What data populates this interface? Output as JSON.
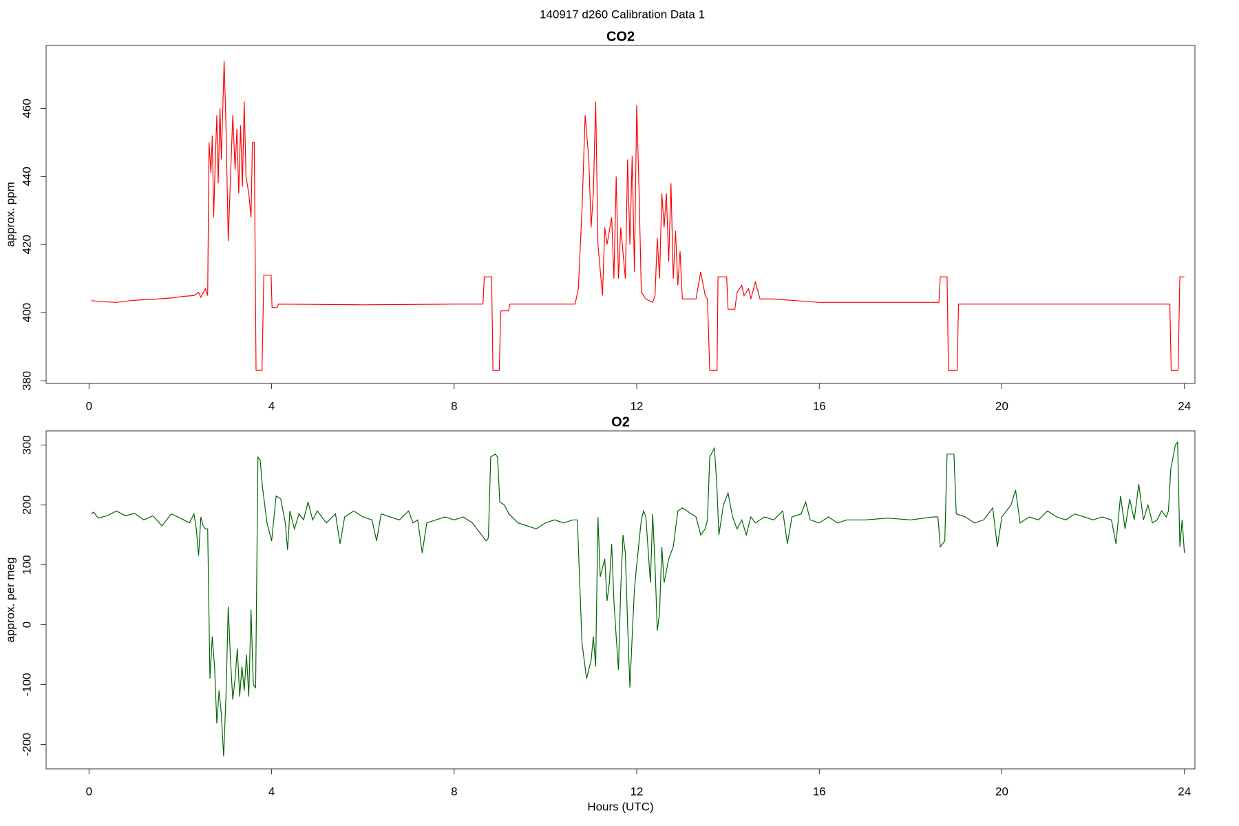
{
  "title": "140917   d260   Calibration Data 1",
  "chart_data": [
    {
      "type": "line",
      "title": "CO2",
      "ylabel": "approx. ppm",
      "color": "#ff0000",
      "xlim": [
        -0.94,
        24.23
      ],
      "ylim": [
        379.2,
        478.5
      ],
      "xticks": [
        0,
        4,
        8,
        12,
        16,
        20,
        24
      ],
      "yticks": [
        380,
        400,
        420,
        440,
        460
      ],
      "x": [
        0.05,
        0.3,
        0.6,
        0.9,
        1.2,
        1.5,
        1.8,
        2.1,
        2.3,
        2.4,
        2.45,
        2.55,
        2.6,
        2.63,
        2.67,
        2.7,
        2.73,
        2.77,
        2.8,
        2.83,
        2.87,
        2.9,
        2.96,
        3.0,
        3.05,
        3.1,
        3.15,
        3.2,
        3.24,
        3.28,
        3.32,
        3.36,
        3.4,
        3.44,
        3.5,
        3.55,
        3.58,
        3.62,
        3.66,
        3.79,
        3.83,
        3.99,
        4.01,
        4.12,
        4.15,
        6,
        8,
        8.63,
        8.66,
        8.82,
        8.85,
        8.99,
        9.02,
        9.19,
        9.22,
        10,
        10.65,
        10.72,
        10.8,
        10.87,
        10.95,
        11.0,
        11.05,
        11.1,
        11.15,
        11.25,
        11.3,
        11.35,
        11.45,
        11.5,
        11.55,
        11.6,
        11.65,
        11.75,
        11.8,
        11.85,
        11.9,
        11.95,
        12.0,
        12.05,
        12.1,
        12.2,
        12.35,
        12.4,
        12.45,
        12.5,
        12.55,
        12.6,
        12.65,
        12.7,
        12.75,
        12.8,
        12.85,
        12.9,
        12.95,
        13.0,
        13.3,
        13.4,
        13.5,
        13.55,
        13.6,
        13.76,
        13.78,
        13.97,
        14.0,
        14.15,
        14.2,
        14.3,
        14.35,
        14.45,
        14.5,
        14.6,
        14.7,
        15,
        16,
        18,
        18.62,
        18.65,
        18.8,
        18.83,
        19.02,
        19.05,
        22,
        23.68,
        23.71,
        23.86,
        23.9,
        24
      ],
      "values": [
        403.5,
        403.2,
        403,
        403.5,
        403.8,
        404,
        404.3,
        404.8,
        405,
        406,
        404.5,
        407,
        405,
        450,
        441,
        452,
        428,
        446,
        458,
        438,
        460,
        445,
        474,
        455,
        421,
        440,
        458,
        442,
        454,
        435,
        455,
        437,
        462,
        440,
        435,
        428,
        450,
        450,
        383,
        383,
        411,
        411,
        401.5,
        401.5,
        402.5,
        402.3,
        402.5,
        402.5,
        410.5,
        410.5,
        383,
        383,
        400.5,
        400.5,
        402.5,
        402.5,
        402.5,
        407,
        430,
        458,
        445,
        425,
        435,
        462,
        420,
        405,
        425,
        420,
        428,
        410,
        440,
        410,
        425,
        410,
        445,
        420,
        446,
        412,
        461,
        436,
        406,
        404,
        403,
        405,
        422,
        410,
        435,
        425,
        435,
        415,
        438,
        410,
        424,
        408,
        418,
        404,
        404,
        412,
        405,
        404,
        383,
        383,
        410.5,
        410.5,
        401,
        401,
        406,
        408,
        405,
        407,
        404,
        409,
        404,
        404,
        403,
        403,
        403,
        410.5,
        410.5,
        383,
        383,
        402.5,
        402.5,
        402.5,
        383,
        383,
        410.5,
        410.5
      ]
    },
    {
      "type": "line",
      "title": "O2",
      "ylabel": "approx. per meg",
      "xlabel": "Hours (UTC)",
      "color": "#006400",
      "xlim": [
        -0.94,
        24.23
      ],
      "ylim": [
        -240.8,
        323.7
      ],
      "xticks": [
        0,
        4,
        8,
        12,
        16,
        20,
        24
      ],
      "yticks": [
        -200,
        -100,
        0,
        100,
        200,
        300
      ],
      "x": [
        0.05,
        0.1,
        0.2,
        0.4,
        0.6,
        0.8,
        1.0,
        1.2,
        1.4,
        1.6,
        1.8,
        2.0,
        2.2,
        2.3,
        2.35,
        2.4,
        2.45,
        2.5,
        2.55,
        2.6,
        2.65,
        2.7,
        2.75,
        2.8,
        2.85,
        2.9,
        2.95,
        3.0,
        3.05,
        3.1,
        3.15,
        3.2,
        3.25,
        3.3,
        3.35,
        3.4,
        3.45,
        3.5,
        3.55,
        3.6,
        3.65,
        3.7,
        3.75,
        3.8,
        3.9,
        4.0,
        4.1,
        4.2,
        4.3,
        4.35,
        4.4,
        4.5,
        4.6,
        4.7,
        4.8,
        4.9,
        5.0,
        5.2,
        5.4,
        5.5,
        5.6,
        5.8,
        6.0,
        6.2,
        6.3,
        6.4,
        6.6,
        6.8,
        7.0,
        7.1,
        7.2,
        7.3,
        7.4,
        7.6,
        7.8,
        8.0,
        8.2,
        8.4,
        8.6,
        8.7,
        8.75,
        8.8,
        8.9,
        8.95,
        9.0,
        9.1,
        9.2,
        9.4,
        9.6,
        9.8,
        10.0,
        10.2,
        10.4,
        10.6,
        10.7,
        10.8,
        10.9,
        11.0,
        11.05,
        11.1,
        11.15,
        11.2,
        11.3,
        11.35,
        11.4,
        11.45,
        11.5,
        11.55,
        11.6,
        11.65,
        11.7,
        11.75,
        11.8,
        11.85,
        11.9,
        11.95,
        12.0,
        12.1,
        12.15,
        12.2,
        12.3,
        12.35,
        12.4,
        12.45,
        12.5,
        12.55,
        12.6,
        12.7,
        12.8,
        12.9,
        13.0,
        13.2,
        13.3,
        13.4,
        13.5,
        13.55,
        13.6,
        13.7,
        13.75,
        13.8,
        13.9,
        14.0,
        14.1,
        14.2,
        14.3,
        14.4,
        14.5,
        14.6,
        14.8,
        15.0,
        15.2,
        15.3,
        15.4,
        15.6,
        15.7,
        15.8,
        16.0,
        16.2,
        16.4,
        16.6,
        17,
        17.5,
        18,
        18.5,
        18.6,
        18.65,
        18.75,
        18.8,
        18.95,
        19.0,
        19.2,
        19.4,
        19.6,
        19.8,
        19.9,
        20.0,
        20.2,
        20.3,
        20.4,
        20.6,
        20.8,
        21.0,
        21.2,
        21.4,
        21.6,
        21.8,
        22.0,
        22.2,
        22.4,
        22.5,
        22.6,
        22.7,
        22.8,
        22.9,
        23.0,
        23.1,
        23.2,
        23.3,
        23.4,
        23.5,
        23.6,
        23.65,
        23.7,
        23.8,
        23.85,
        23.9,
        23.95,
        24.0
      ],
      "values": [
        185,
        188,
        178,
        182,
        190,
        182,
        186,
        175,
        182,
        165,
        185,
        178,
        170,
        185,
        160,
        115,
        180,
        165,
        160,
        160,
        -90,
        -20,
        -70,
        -165,
        -110,
        -150,
        -220,
        -120,
        30,
        -60,
        -125,
        -90,
        -40,
        -120,
        -70,
        -110,
        -50,
        -120,
        25,
        -100,
        -105,
        280,
        275,
        230,
        170,
        140,
        215,
        210,
        170,
        125,
        190,
        160,
        185,
        175,
        205,
        175,
        190,
        170,
        185,
        135,
        180,
        190,
        180,
        175,
        140,
        185,
        180,
        175,
        190,
        170,
        175,
        120,
        170,
        175,
        180,
        175,
        180,
        170,
        150,
        140,
        145,
        280,
        285,
        280,
        205,
        200,
        185,
        170,
        165,
        160,
        170,
        175,
        170,
        175,
        175,
        -30,
        -90,
        -60,
        -20,
        -70,
        180,
        80,
        110,
        40,
        70,
        135,
        40,
        -20,
        -75,
        60,
        150,
        120,
        0,
        -105,
        -20,
        60,
        100,
        175,
        190,
        180,
        70,
        185,
        100,
        -10,
        20,
        130,
        70,
        110,
        130,
        190,
        195,
        185,
        180,
        150,
        160,
        175,
        280,
        295,
        240,
        150,
        200,
        220,
        180,
        160,
        175,
        150,
        180,
        170,
        180,
        175,
        190,
        135,
        180,
        185,
        205,
        175,
        170,
        180,
        170,
        175,
        175,
        178,
        175,
        180,
        180,
        130,
        140,
        285,
        285,
        185,
        180,
        170,
        175,
        195,
        130,
        180,
        200,
        225,
        170,
        180,
        175,
        190,
        180,
        175,
        185,
        180,
        175,
        180,
        175,
        135,
        215,
        160,
        210,
        175,
        235,
        175,
        200,
        170,
        175,
        190,
        180,
        190,
        260,
        300,
        305,
        130,
        175,
        120
      ]
    }
  ]
}
